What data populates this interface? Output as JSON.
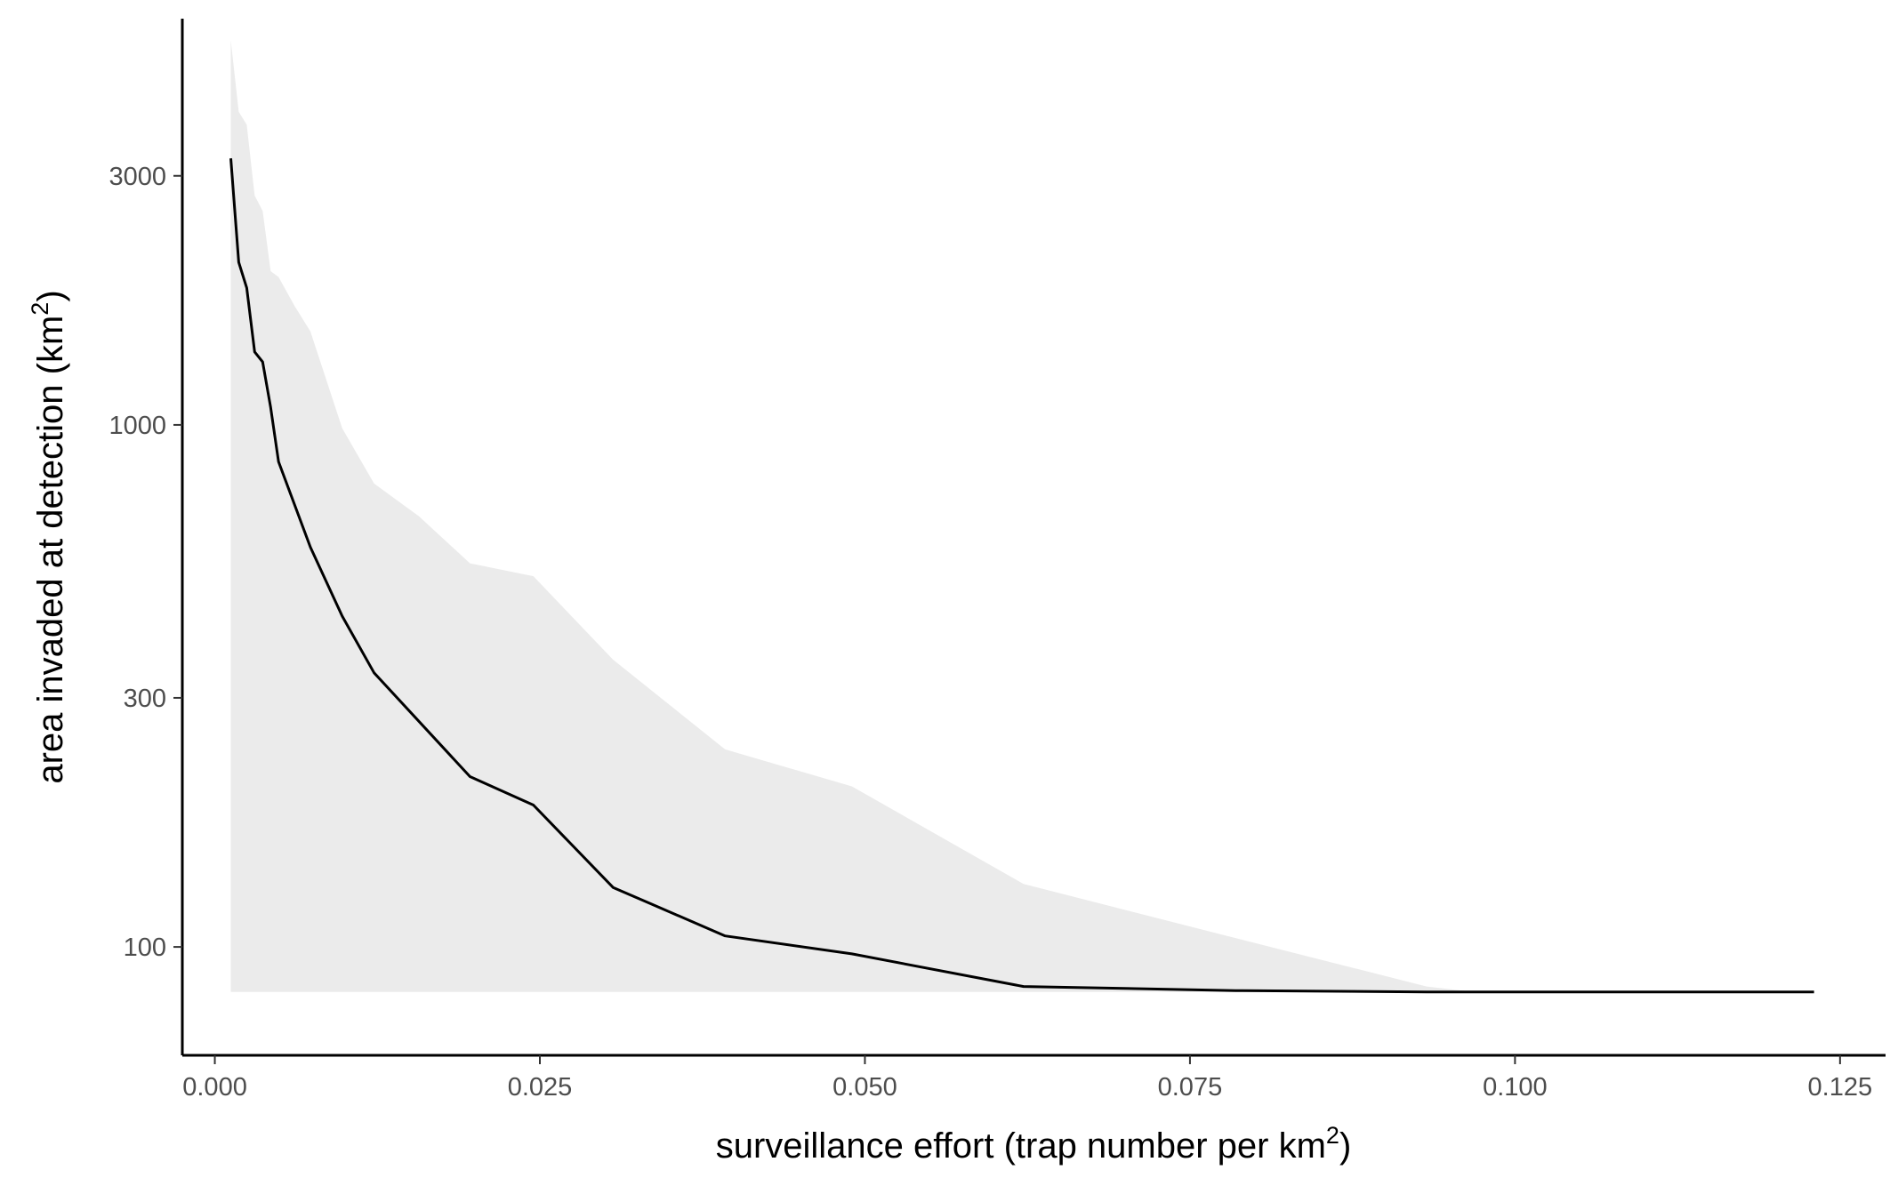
{
  "chart_data": {
    "type": "line",
    "title": "",
    "xlabel": {
      "prefix": "surveillance effort (trap number per km",
      "sup": "2",
      "suffix": ")"
    },
    "ylabel": {
      "prefix": "area invaded at detection (km",
      "sup": "2",
      "suffix": ")"
    },
    "x_scale": "linear",
    "y_scale": "log10",
    "xlim": [
      -0.0025,
      0.1285
    ],
    "ylim": [
      62,
      6000
    ],
    "x_ticks": [
      {
        "value": 0.0,
        "label": "0.000"
      },
      {
        "value": 0.025,
        "label": "0.025"
      },
      {
        "value": 0.05,
        "label": "0.050"
      },
      {
        "value": 0.075,
        "label": "0.075"
      },
      {
        "value": 0.1,
        "label": "0.100"
      },
      {
        "value": 0.125,
        "label": "0.125"
      }
    ],
    "y_ticks": [
      {
        "value": 100,
        "label": "100"
      },
      {
        "value": 300,
        "label": "300"
      },
      {
        "value": 1000,
        "label": "1000"
      },
      {
        "value": 3000,
        "label": "3000"
      }
    ],
    "grid": false,
    "legend": "none",
    "series": [
      {
        "kind": "ribbon",
        "color": "#ebebeb",
        "x": [
          0.00123,
          0.00184,
          0.00245,
          0.00306,
          0.00368,
          0.00429,
          0.0049,
          0.00613,
          0.00735,
          0.0098,
          0.01225,
          0.0157,
          0.01962,
          0.0245,
          0.03063,
          0.03925,
          0.049,
          0.0622,
          0.0785,
          0.0932,
          0.0968,
          0.123
        ],
        "lower": [
          82,
          82,
          82,
          82,
          82,
          82,
          82,
          82,
          82,
          82,
          82,
          82,
          82,
          82,
          82,
          82,
          82,
          82,
          82,
          82,
          82,
          82
        ],
        "upper": [
          5450,
          3980,
          3760,
          2750,
          2570,
          1970,
          1920,
          1690,
          1510,
          985,
          772,
          668,
          543,
          513,
          355,
          239,
          203,
          132,
          104,
          84,
          82,
          82
        ]
      },
      {
        "kind": "line",
        "color": "#000000",
        "x": [
          0.00123,
          0.00184,
          0.00245,
          0.00306,
          0.00368,
          0.00429,
          0.0049,
          0.00735,
          0.0098,
          0.01225,
          0.01962,
          0.0245,
          0.03063,
          0.03925,
          0.049,
          0.0622,
          0.0785,
          0.0932,
          0.123
        ],
        "y": [
          3240,
          2050,
          1830,
          1380,
          1320,
          1080,
          850,
          583,
          430,
          335,
          212,
          187,
          130,
          105,
          97,
          84,
          82.5,
          82,
          82
        ]
      }
    ]
  }
}
